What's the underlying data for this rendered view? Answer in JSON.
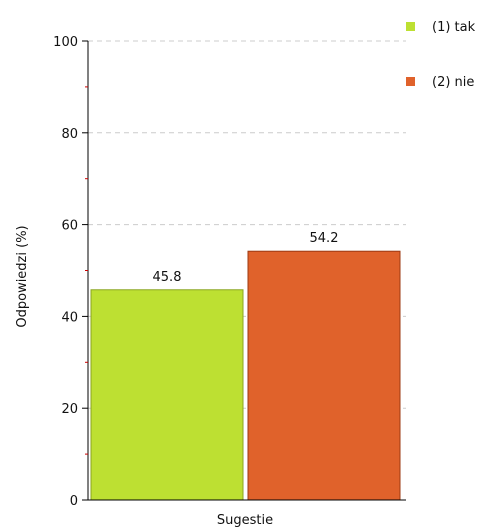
{
  "chart_data": {
    "type": "bar",
    "title": "",
    "xlabel": "Sugestie",
    "ylabel": "Odpowiedzi (%)",
    "ylim": [
      0,
      100
    ],
    "yticks": [
      0,
      20,
      40,
      60,
      80,
      100
    ],
    "grid": true,
    "legend_position": "top-right",
    "categories": [
      "Sugestie"
    ],
    "series": [
      {
        "name": "(1) tak",
        "values": [
          45.8
        ],
        "color": "#bde032",
        "border": "#8aa51f"
      },
      {
        "name": "(2) nie",
        "values": [
          54.2
        ],
        "color": "#e0622b",
        "border": "#9c3a12"
      }
    ],
    "data_labels": [
      "45.8",
      "54.2"
    ]
  }
}
